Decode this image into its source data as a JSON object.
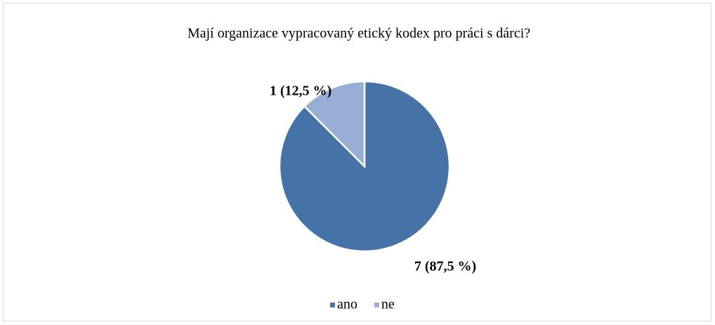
{
  "chart_data": {
    "type": "pie",
    "title": "Mají organizace vypracovaný etický kodex pro práci s dárci?",
    "categories": [
      "ano",
      "ne"
    ],
    "values": [
      7,
      1
    ],
    "value_labels": [
      "7 (87,5 %)",
      "1 (12,5 %)"
    ],
    "colors": [
      "#4573a7",
      "#98aed4"
    ],
    "legend": "bottom"
  }
}
